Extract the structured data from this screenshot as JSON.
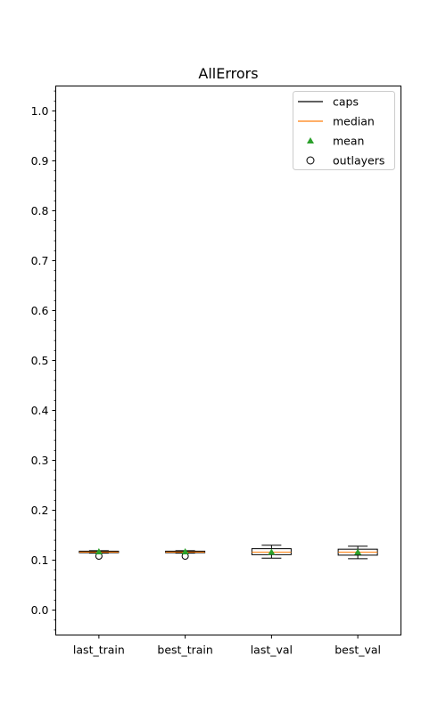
{
  "chart_data": {
    "type": "box",
    "title": "AllErrors",
    "xlabel": "",
    "ylabel": "",
    "ylim": [
      -0.05,
      1.05
    ],
    "yticks": [
      0.0,
      0.1,
      0.2,
      0.3,
      0.4,
      0.5,
      0.6,
      0.7,
      0.8,
      0.9,
      1.0
    ],
    "ytick_labels": [
      "0.0",
      "0.1",
      "0.2",
      "0.3",
      "0.4",
      "0.5",
      "0.6",
      "0.7",
      "0.8",
      "0.9",
      "1.0"
    ],
    "yminor_step": 0.02,
    "grid": false,
    "categories": [
      "last_train",
      "best_train",
      "last_val",
      "best_val"
    ],
    "boxes": [
      {
        "whisker_low": 0.114,
        "q1": 0.115,
        "median": 0.116,
        "q3": 0.118,
        "whisker_high": 0.119,
        "mean": 0.117,
        "outliers": [
          0.108
        ]
      },
      {
        "whisker_low": 0.114,
        "q1": 0.115,
        "median": 0.116,
        "q3": 0.118,
        "whisker_high": 0.119,
        "mean": 0.117,
        "outliers": [
          0.108
        ]
      },
      {
        "whisker_low": 0.104,
        "q1": 0.111,
        "median": 0.116,
        "q3": 0.123,
        "whisker_high": 0.13,
        "mean": 0.116,
        "outliers": []
      },
      {
        "whisker_low": 0.103,
        "q1": 0.11,
        "median": 0.116,
        "q3": 0.122,
        "whisker_high": 0.128,
        "mean": 0.116,
        "outliers": []
      }
    ],
    "legend": {
      "position": "top-right",
      "entries": [
        {
          "label": "caps",
          "marker": "line"
        },
        {
          "label": "median",
          "marker": "line"
        },
        {
          "label": "mean",
          "marker": "triangle"
        },
        {
          "label": "outlayers",
          "marker": "circle"
        }
      ]
    },
    "colors": {
      "caps": "#000000",
      "median": "#ff7f0e",
      "mean": "#2ca02c",
      "outliers": "#000000"
    }
  }
}
